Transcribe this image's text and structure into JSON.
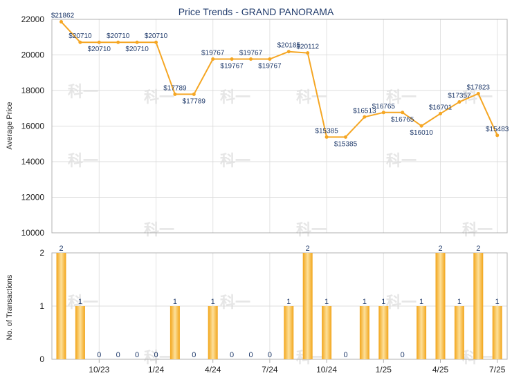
{
  "chart_data": [
    {
      "type": "line",
      "title": "Price Trends - GRAND PANORAMA",
      "ylabel": "Average Price",
      "ylim": [
        10000,
        22000
      ],
      "yticks": [
        10000,
        12000,
        14000,
        16000,
        18000,
        20000,
        22000
      ],
      "color": "#f5a623",
      "points": [
        {
          "month": "2023-08",
          "value": 21862,
          "label": "$21862"
        },
        {
          "month": "2023-09",
          "value": 20710,
          "label": "$20710"
        },
        {
          "month": "2023-10",
          "value": 20710,
          "label": "$20710"
        },
        {
          "month": "2023-11",
          "value": 20710,
          "label": "$20710"
        },
        {
          "month": "2023-12",
          "value": 20710,
          "label": "$20710"
        },
        {
          "month": "2024-01",
          "value": 20710,
          "label": "$20710"
        },
        {
          "month": "2024-02",
          "value": 17789,
          "label": "$17789"
        },
        {
          "month": "2024-03",
          "value": 17789,
          "label": "$17789"
        },
        {
          "month": "2024-04",
          "value": 19767,
          "label": "$19767"
        },
        {
          "month": "2024-05",
          "value": 19767,
          "label": "$19767"
        },
        {
          "month": "2024-06",
          "value": 19767,
          "label": "$19767"
        },
        {
          "month": "2024-07",
          "value": 19767,
          "label": "$19767"
        },
        {
          "month": "2024-08",
          "value": 20185,
          "label": "$20185"
        },
        {
          "month": "2024-09",
          "value": 20112,
          "label": "$20112"
        },
        {
          "month": "2024-10",
          "value": 15385,
          "label": "$15385"
        },
        {
          "month": "2024-11",
          "value": 15385,
          "label": "$15385"
        },
        {
          "month": "2024-12",
          "value": 16513,
          "label": "$16513"
        },
        {
          "month": "2025-01",
          "value": 16765,
          "label": "$16765"
        },
        {
          "month": "2025-02",
          "value": 16765,
          "label": "$16765"
        },
        {
          "month": "2025-03",
          "value": 16010,
          "label": "$16010"
        },
        {
          "month": "2025-04",
          "value": 16701,
          "label": "$16701"
        },
        {
          "month": "2025-05",
          "value": 17357,
          "label": "$17357"
        },
        {
          "month": "2025-06",
          "value": 17823,
          "label": "$17823"
        },
        {
          "month": "2025-07",
          "value": 15483,
          "label": "$15483"
        }
      ]
    },
    {
      "type": "bar",
      "ylabel": "No. of Transactions",
      "ylim": [
        0,
        2
      ],
      "yticks": [
        0,
        1,
        2
      ],
      "color": "#f5a623",
      "months": [
        "2023-08",
        "2023-09",
        "2023-10",
        "2023-11",
        "2023-12",
        "2024-01",
        "2024-02",
        "2024-03",
        "2024-04",
        "2024-05",
        "2024-06",
        "2024-07",
        "2024-08",
        "2024-09",
        "2024-10",
        "2024-11",
        "2024-12",
        "2025-01",
        "2025-02",
        "2025-03",
        "2025-04",
        "2025-05",
        "2025-06",
        "2025-07"
      ],
      "values": [
        2,
        1,
        0,
        0,
        0,
        0,
        1,
        0,
        1,
        0,
        0,
        0,
        1,
        2,
        1,
        0,
        1,
        1,
        0,
        1,
        2,
        1,
        2,
        1
      ],
      "xticks": [
        {
          "month": "2023-10",
          "label": "10/23"
        },
        {
          "month": "2024-01",
          "label": "1/24"
        },
        {
          "month": "2024-04",
          "label": "4/24"
        },
        {
          "month": "2024-07",
          "label": "7/24"
        },
        {
          "month": "2024-10",
          "label": "10/24"
        },
        {
          "month": "2025-01",
          "label": "1/25"
        },
        {
          "month": "2025-04",
          "label": "4/25"
        },
        {
          "month": "2025-07",
          "label": "7/25"
        }
      ]
    }
  ],
  "watermark": "科一"
}
